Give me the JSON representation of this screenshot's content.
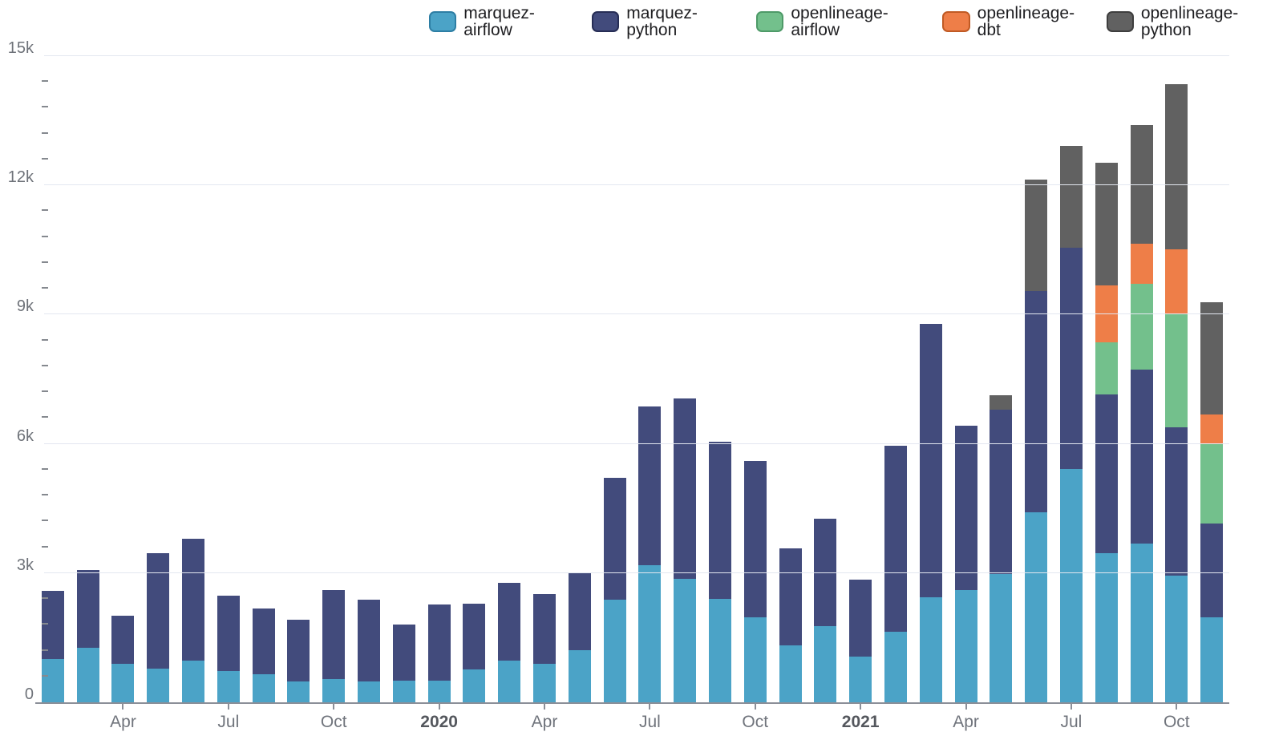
{
  "chart_data": {
    "type": "bar",
    "stacked": true,
    "title": "",
    "xlabel": "",
    "ylabel": "",
    "ylim": [
      0,
      15000
    ],
    "grid": "horizontal-major",
    "legend_position": "top-right",
    "y_axis": {
      "major_ticks": [
        {
          "value": 0,
          "label": "0"
        },
        {
          "value": 3000,
          "label": "3k"
        },
        {
          "value": 6000,
          "label": "6k"
        },
        {
          "value": 9000,
          "label": "9k"
        },
        {
          "value": 12000,
          "label": "12k"
        },
        {
          "value": 15000,
          "label": "15k"
        }
      ],
      "minor_tick_step": 600
    },
    "months": [
      "Feb 2019",
      "Mar 2019",
      "Apr 2019",
      "May 2019",
      "Jun 2019",
      "Jul 2019",
      "Aug 2019",
      "Sep 2019",
      "Oct 2019",
      "Nov 2019",
      "Dec 2019",
      "Jan 2020",
      "Feb 2020",
      "Mar 2020",
      "Apr 2020",
      "May 2020",
      "Jun 2020",
      "Jul 2020",
      "Aug 2020",
      "Sep 2020",
      "Oct 2020",
      "Nov 2020",
      "Dec 2020",
      "Jan 2021",
      "Feb 2021",
      "Mar 2021",
      "Apr 2021",
      "May 2021",
      "Jun 2021",
      "Jul 2021",
      "Aug 2021",
      "Sep 2021",
      "Oct 2021",
      "Nov 2021"
    ],
    "x_axis_labels": [
      {
        "index": 2,
        "text": "Apr",
        "bold": false
      },
      {
        "index": 5,
        "text": "Jul",
        "bold": false
      },
      {
        "index": 8,
        "text": "Oct",
        "bold": false
      },
      {
        "index": 11,
        "text": "2020",
        "bold": true
      },
      {
        "index": 14,
        "text": "Apr",
        "bold": false
      },
      {
        "index": 17,
        "text": "Jul",
        "bold": false
      },
      {
        "index": 20,
        "text": "Oct",
        "bold": false
      },
      {
        "index": 23,
        "text": "2021",
        "bold": true
      },
      {
        "index": 26,
        "text": "Apr",
        "bold": false
      },
      {
        "index": 29,
        "text": "Jul",
        "bold": false
      },
      {
        "index": 32,
        "text": "Oct",
        "bold": false
      }
    ],
    "series": [
      {
        "name": "marquez-airflow",
        "color": "#4BA3C7",
        "border_color": "#2D7EA4",
        "values": [
          1000,
          1260,
          900,
          790,
          960,
          720,
          650,
          490,
          540,
          480,
          510,
          510,
          770,
          960,
          890,
          1210,
          2390,
          3180,
          2870,
          2400,
          1980,
          1330,
          1770,
          1070,
          1640,
          2430,
          2600,
          2980,
          4410,
          5410,
          3460,
          3690,
          2950,
          1980
        ]
      },
      {
        "name": "marquez-python",
        "color": "#424B7C",
        "border_color": "#262D55",
        "values": [
          1590,
          1820,
          1110,
          2670,
          2830,
          1750,
          1520,
          1420,
          2060,
          1910,
          1300,
          1760,
          1520,
          1810,
          1620,
          1800,
          2830,
          3680,
          4190,
          3650,
          3630,
          2240,
          2490,
          1780,
          4320,
          6350,
          3820,
          3820,
          5140,
          5150,
          3680,
          4040,
          3430,
          2170
        ]
      },
      {
        "name": "openlineage-airflow",
        "color": "#73C08C",
        "border_color": "#4E9A68",
        "values": [
          0,
          0,
          0,
          0,
          0,
          0,
          0,
          0,
          0,
          0,
          0,
          0,
          0,
          0,
          0,
          0,
          0,
          0,
          0,
          0,
          0,
          0,
          0,
          0,
          0,
          0,
          0,
          0,
          0,
          0,
          1220,
          1980,
          2630,
          1850
        ]
      },
      {
        "name": "openlineage-dbt",
        "color": "#EE7E48",
        "border_color": "#C05A24",
        "values": [
          0,
          0,
          0,
          0,
          0,
          0,
          0,
          0,
          0,
          0,
          0,
          0,
          0,
          0,
          0,
          0,
          0,
          0,
          0,
          0,
          0,
          0,
          0,
          0,
          0,
          0,
          0,
          0,
          0,
          0,
          1320,
          930,
          1510,
          680
        ]
      },
      {
        "name": "openlineage-python",
        "color": "#616161",
        "border_color": "#3E3E3E",
        "values": [
          0,
          0,
          0,
          0,
          0,
          0,
          0,
          0,
          0,
          0,
          0,
          0,
          0,
          0,
          0,
          0,
          0,
          0,
          0,
          0,
          0,
          0,
          0,
          0,
          0,
          0,
          0,
          320,
          2590,
          2350,
          2850,
          2760,
          3840,
          2600
        ]
      }
    ]
  }
}
